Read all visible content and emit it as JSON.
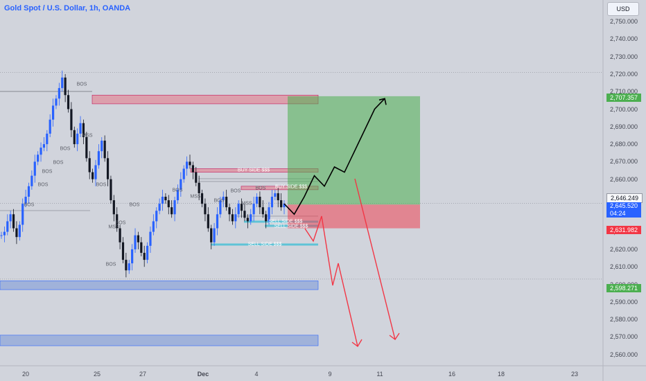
{
  "chart_title": "Gold Spot / U.S. Dollar, 1h, OANDA",
  "currency_button": "USD",
  "price_axis": [
    "2,750.000",
    "2,740.000",
    "2,730.000",
    "2,720.000",
    "2,710.000",
    "2,700.000",
    "2,690.000",
    "2,680.000",
    "2,670.000",
    "2,660.000",
    "2,650.000",
    "2,640.000",
    "2,630.000",
    "2,620.000",
    "2,610.000",
    "2,600.000",
    "2,590.000",
    "2,580.000",
    "2,570.000",
    "2,560.000"
  ],
  "time_axis": [
    {
      "label": "20",
      "bold": false
    },
    {
      "label": "25",
      "bold": false
    },
    {
      "label": "27",
      "bold": false
    },
    {
      "label": "Dec",
      "bold": true
    },
    {
      "label": "4",
      "bold": false
    },
    {
      "label": "9",
      "bold": false
    },
    {
      "label": "11",
      "bold": false
    },
    {
      "label": "16",
      "bold": false
    },
    {
      "label": "18",
      "bold": false
    },
    {
      "label": "23",
      "bold": false
    }
  ],
  "price_tags": {
    "target": "2,707.357",
    "crosshair": "2,646.249",
    "current": "2,645.520",
    "countdown": "04:24",
    "stop": "2,631.982",
    "low_target": "2,598.271"
  },
  "annotations": {
    "bos": "BOS",
    "mss": "MSS",
    "buy_side": "BUY SIDE $$$",
    "sell_side": "SELL SIDE $$$"
  },
  "colors": {
    "background": "#d1d4dc",
    "candle_up": "#2962ff",
    "candle_down": "#131722",
    "zone_red": "#e57385",
    "zone_blue": "#7e9bd8",
    "profit_zone": "#4caf50",
    "loss_zone": "#f23645",
    "sell_line": "#5fc3d6"
  },
  "chart_data": {
    "type": "candlestick",
    "symbol": "Gold Spot / U.S. Dollar",
    "interval": "1h",
    "ylim": [
      2556,
      2758
    ],
    "long_position": {
      "entry": 2645.52,
      "target": 2707.357,
      "stop": 2631.982
    },
    "supply_zones": [
      {
        "from": 2703,
        "to": 2708
      },
      {
        "from": 2664,
        "to": 2666
      },
      {
        "from": 2654,
        "to": 2656
      }
    ],
    "demand_zones": [
      {
        "from": 2597,
        "to": 2602
      },
      {
        "from": 2565,
        "to": 2571
      }
    ],
    "close_path": [
      2628,
      2630,
      2636,
      2640,
      2632,
      2627,
      2634,
      2646,
      2650,
      2656,
      2662,
      2670,
      2674,
      2678,
      2680,
      2686,
      2694,
      2702,
      2706,
      2712,
      2718,
      2708,
      2700,
      2688,
      2680,
      2686,
      2692,
      2684,
      2672,
      2664,
      2660,
      2668,
      2676,
      2682,
      2672,
      2660,
      2648,
      2640,
      2632,
      2624,
      2614,
      2608,
      2612,
      2620,
      2628,
      2624,
      2618,
      2614,
      2622,
      2630,
      2636,
      2642,
      2646,
      2650,
      2648,
      2644,
      2640,
      2648,
      2654,
      2660,
      2666,
      2670,
      2668,
      2664,
      2658,
      2652,
      2646,
      2640,
      2632,
      2624,
      2632,
      2640,
      2648,
      2650,
      2644,
      2640,
      2636,
      2640,
      2646,
      2642,
      2638,
      2636,
      2640,
      2646,
      2650,
      2644,
      2640,
      2636,
      2644,
      2650,
      2652,
      2648,
      2644,
      2646
    ],
    "scenario_paths": [
      {
        "name": "bullish",
        "points": [
          [
            2646,
            0
          ],
          [
            2640,
            1
          ],
          [
            2650,
            2
          ],
          [
            2662,
            3
          ],
          [
            2656,
            4
          ],
          [
            2667,
            5
          ],
          [
            2664,
            6
          ],
          [
            2676,
            7
          ],
          [
            2688,
            8
          ],
          [
            2700,
            9
          ],
          [
            2706,
            10
          ]
        ]
      },
      {
        "name": "bearish",
        "points": [
          [
            2646,
            0
          ],
          [
            2636,
            1
          ],
          [
            2622,
            2
          ],
          [
            2608,
            3
          ],
          [
            2592,
            4
          ],
          [
            2570,
            5
          ]
        ]
      }
    ]
  }
}
